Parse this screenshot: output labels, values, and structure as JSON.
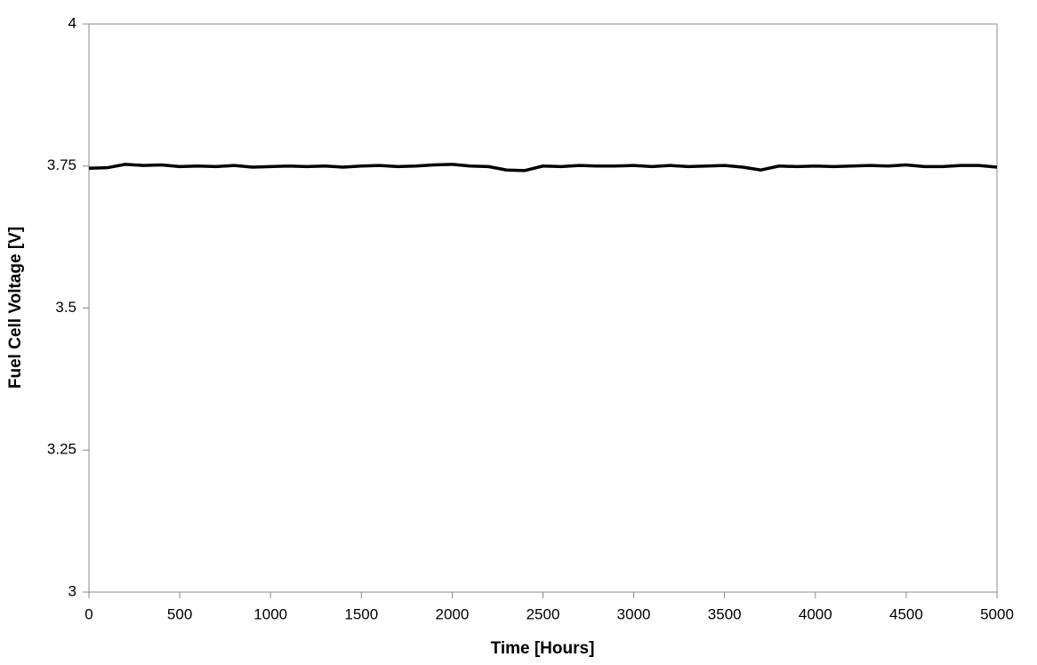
{
  "chart_data": {
    "type": "line",
    "x_label": "Time [Hours]",
    "y_label": "Fuel Cell Voltage [V]",
    "x": [
      0,
      100,
      200,
      300,
      400,
      500,
      600,
      700,
      800,
      900,
      1000,
      1100,
      1200,
      1300,
      1400,
      1500,
      1600,
      1700,
      1800,
      1900,
      2000,
      2100,
      2200,
      2300,
      2400,
      2500,
      2600,
      2700,
      2800,
      2900,
      3000,
      3100,
      3200,
      3300,
      3400,
      3500,
      3600,
      3700,
      3800,
      3900,
      4000,
      4100,
      4200,
      4300,
      4400,
      4500,
      4600,
      4700,
      4800,
      4900,
      5000
    ],
    "values": [
      3.746,
      3.747,
      3.753,
      3.751,
      3.752,
      3.749,
      3.75,
      3.749,
      3.751,
      3.748,
      3.749,
      3.75,
      3.749,
      3.75,
      3.748,
      3.75,
      3.751,
      3.749,
      3.75,
      3.752,
      3.753,
      3.75,
      3.749,
      3.743,
      3.742,
      3.75,
      3.749,
      3.751,
      3.75,
      3.75,
      3.751,
      3.749,
      3.751,
      3.749,
      3.75,
      3.751,
      3.748,
      3.743,
      3.75,
      3.749,
      3.75,
      3.749,
      3.75,
      3.751,
      3.75,
      3.752,
      3.749,
      3.749,
      3.751,
      3.751,
      3.748
    ],
    "color": "#000000",
    "xlim": [
      0,
      5000
    ],
    "xticks": [
      0,
      500,
      1000,
      1500,
      2000,
      2500,
      3000,
      3500,
      4000,
      4500,
      5000
    ],
    "ylim": [
      3,
      4
    ],
    "yticks": [
      3,
      3.25,
      3.5,
      3.75,
      4
    ],
    "grid": false
  }
}
